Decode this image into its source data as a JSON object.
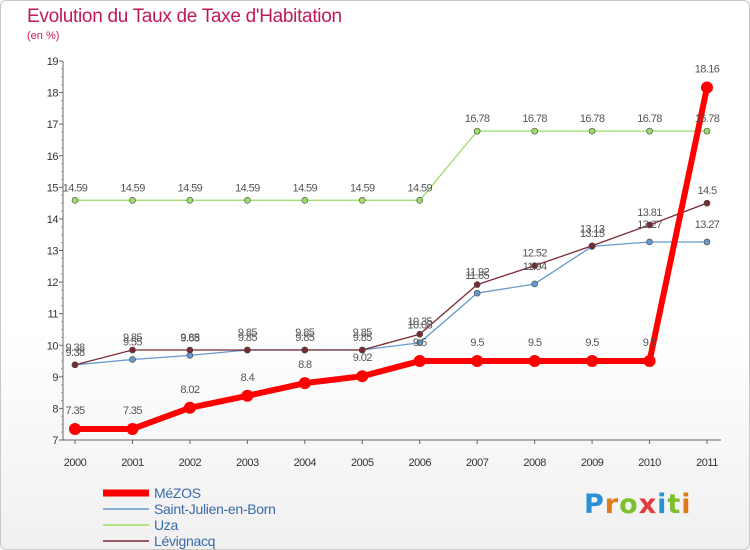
{
  "header": {
    "title": "Evolution du Taux de Taxe d'Habitation",
    "unit": "(en %)"
  },
  "brand": {
    "letters": [
      "P",
      "r",
      "o",
      "x",
      "i",
      "t",
      "i"
    ]
  },
  "chart_data": {
    "type": "line",
    "title": "Evolution du Taux de Taxe d'Habitation",
    "ylabel": "(en %)",
    "xlabel": "",
    "x": [
      "2000",
      "2001",
      "2002",
      "2003",
      "2004",
      "2005",
      "2006",
      "2007",
      "2008",
      "2009",
      "2010",
      "2011"
    ],
    "ylim": [
      7,
      19
    ],
    "yticks": [
      7,
      8,
      9,
      10,
      11,
      12,
      13,
      14,
      15,
      16,
      17,
      18,
      19
    ],
    "grid": false,
    "legend": "bottom-left",
    "series": [
      {
        "name": "MéZOS",
        "color": "#ff0000",
        "values": [
          7.35,
          7.35,
          8.02,
          8.4,
          8.8,
          9.02,
          9.5,
          9.5,
          9.5,
          9.5,
          9.5,
          18.16
        ],
        "labels": [
          "7.35",
          "7.35",
          "8.02",
          "8.4",
          "8.8",
          "9.02",
          "9.5",
          "9.5",
          "9.5",
          "9.5",
          "9.5",
          "18.16"
        ]
      },
      {
        "name": "Saint-Julien-en-Born",
        "color": "#6699cc",
        "values": [
          9.38,
          9.55,
          9.68,
          9.85,
          9.85,
          9.85,
          10.08,
          11.65,
          11.94,
          13.13,
          13.27,
          13.27
        ],
        "labels": [
          "9.38",
          "9.55",
          "9.68",
          "9.85",
          "9.85",
          "9.85",
          "10.08",
          "11.65",
          "11.94",
          "13.13",
          "13.27",
          "13.27"
        ]
      },
      {
        "name": "Uza",
        "color": "#99dd66",
        "values": [
          14.59,
          14.59,
          14.59,
          14.59,
          14.59,
          14.59,
          14.59,
          16.78,
          16.78,
          16.78,
          16.78,
          16.78
        ],
        "labels": [
          "14.59",
          "14.59",
          "14.59",
          "14.59",
          "14.59",
          "14.59",
          "14.59",
          "16.78",
          "16.78",
          "16.78",
          "16.78",
          "16.78"
        ]
      },
      {
        "name": "Lévignacq",
        "color": "#7a2a33",
        "values": [
          9.38,
          9.85,
          9.85,
          9.85,
          9.85,
          9.85,
          10.35,
          11.92,
          12.52,
          13.15,
          13.81,
          14.5
        ],
        "labels": [
          "9.38",
          "9.85",
          "9.85",
          "9.85",
          "9.85",
          "9.85",
          "10.35",
          "11.92",
          "12.52",
          "13.15",
          "13.81",
          "14.5"
        ]
      }
    ]
  }
}
